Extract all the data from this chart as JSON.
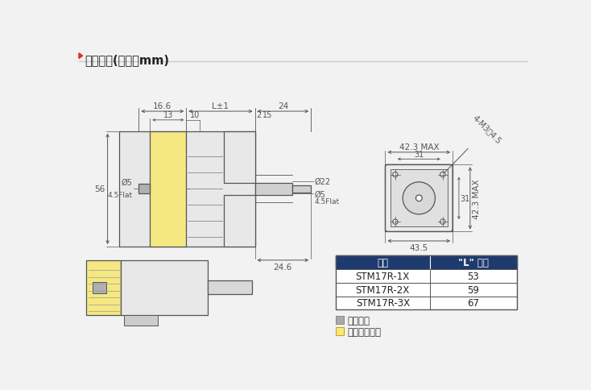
{
  "title_text": "机械尺寸(单位：mm)",
  "bg_color": "#f2f2f2",
  "line_color": "#555555",
  "table_header_bg": "#1e3a6e",
  "table_header_fg": "#ffffff",
  "table_rows": [
    [
      "STM17R-1X",
      "53"
    ],
    [
      "STM17R-2X",
      "59"
    ],
    [
      "STM17R-3X",
      "67"
    ]
  ],
  "table_col1": "型号",
  "table_col2": "\"L\" 长度",
  "encoder_fill": "#f5e882",
  "rear_shaft_fill": "#b0b0b0",
  "motor_fill": "#e8e8e8",
  "connector_fill": "#d8d8d8",
  "legend_gray": "#aaaaaa",
  "legend_yellow": "#f5e882",
  "legend_gray_label": "为后出轴",
  "legend_yellow_label": "为外置编码器"
}
